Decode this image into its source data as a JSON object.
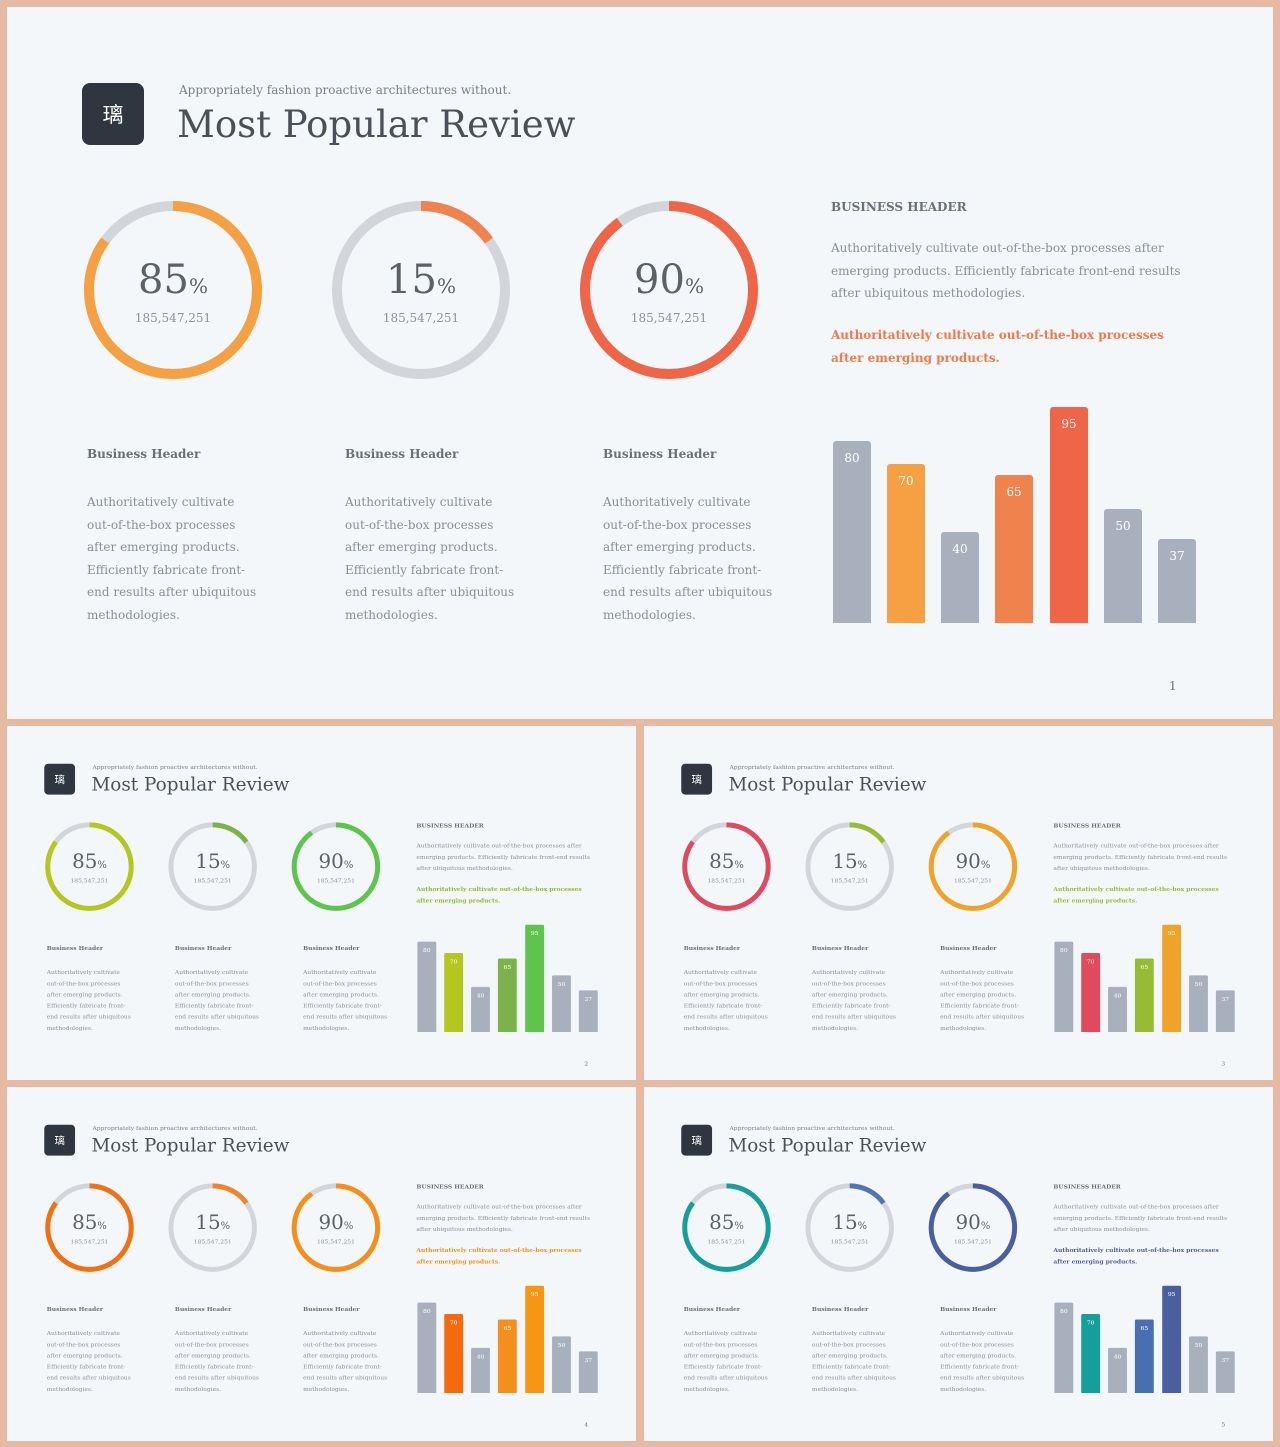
{
  "common": {
    "logo_char": "璃",
    "subtitle": "Appropriately fashion proactive architectures without.",
    "title": "Most Popular Review",
    "rings": [
      {
        "value": "85",
        "pct": "%",
        "sub": "185,547,251",
        "fraction": 0.85
      },
      {
        "value": "15",
        "pct": "%",
        "sub": "185,547,251",
        "fraction": 0.15
      },
      {
        "value": "90",
        "pct": "%",
        "sub": "185,547,251",
        "fraction": 0.9
      }
    ],
    "columns": [
      {
        "header": "Business Header",
        "lines": [
          "Authoritatively cultivate",
          "out-of-the-box processes",
          "after emerging products.",
          "Efficiently fabricate front-",
          "end results after ubiquitous",
          "methodologies."
        ]
      },
      {
        "header": "Business Header",
        "lines": [
          "Authoritatively cultivate",
          "out-of-the-box processes",
          "after emerging products.",
          "Efficiently fabricate front-",
          "end results after ubiquitous",
          "methodologies."
        ]
      },
      {
        "header": "Business Header",
        "lines": [
          "Authoritatively cultivate",
          "out-of-the-box processes",
          "after emerging products.",
          "Efficiently fabricate front-",
          "end results after ubiquitous",
          "methodologies."
        ]
      }
    ],
    "business_header": "BUSINESS HEADER",
    "business_text": "Authoritatively cultivate out-of-the-box processes after emerging products. Efficiently fabricate front-end results after ubiquitous methodologies.",
    "business_accent_text": "Authoritatively cultivate out-of-the-box processes after emerging products.",
    "bar_values": [
      80,
      70,
      40,
      65,
      95,
      50,
      37
    ]
  },
  "slides": [
    {
      "page": "1",
      "ring_colors": [
        "#f5a042",
        "#f0824e",
        "#ee6548"
      ],
      "accent": "#ee7a4a",
      "bar_colors": [
        "#a9b0bd",
        "#f5a042",
        "#a9b0bd",
        "#f0824e",
        "#ee6548",
        "#a9b0bd",
        "#a9b0bd"
      ]
    },
    {
      "page": "2",
      "ring_colors": [
        "#b5c71f",
        "#7bb34a",
        "#5ec44c"
      ],
      "accent": "#8dbd2c",
      "bar_colors": [
        "#a9b0bd",
        "#b5c71f",
        "#a9b0bd",
        "#7bb34a",
        "#5ec44c",
        "#a9b0bd",
        "#a9b0bd"
      ]
    },
    {
      "page": "3",
      "ring_colors": [
        "#de4b5e",
        "#98bb35",
        "#f0a32a"
      ],
      "accent": "#98bb35",
      "bar_colors": [
        "#a9b0bd",
        "#de4b5e",
        "#a9b0bd",
        "#98bb35",
        "#f0a32a",
        "#a9b0bd",
        "#a9b0bd"
      ]
    },
    {
      "page": "4",
      "ring_colors": [
        "#f07014",
        "#f2832a",
        "#f58f1c"
      ],
      "accent": "#f58f1c",
      "bar_colors": [
        "#a9b0bd",
        "#f46a0e",
        "#a9b0bd",
        "#f58f1c",
        "#f69713",
        "#a9b0bd",
        "#a9b0bd"
      ]
    },
    {
      "page": "5",
      "ring_colors": [
        "#169f9a",
        "#5075b5",
        "#4a5fa0"
      ],
      "accent": "#4a5fa0",
      "bar_colors": [
        "#a9b0bd",
        "#169f9a",
        "#a9b0bd",
        "#4a6fb0",
        "#4a5fa0",
        "#a9b0bd",
        "#a9b0bd"
      ]
    }
  ]
}
